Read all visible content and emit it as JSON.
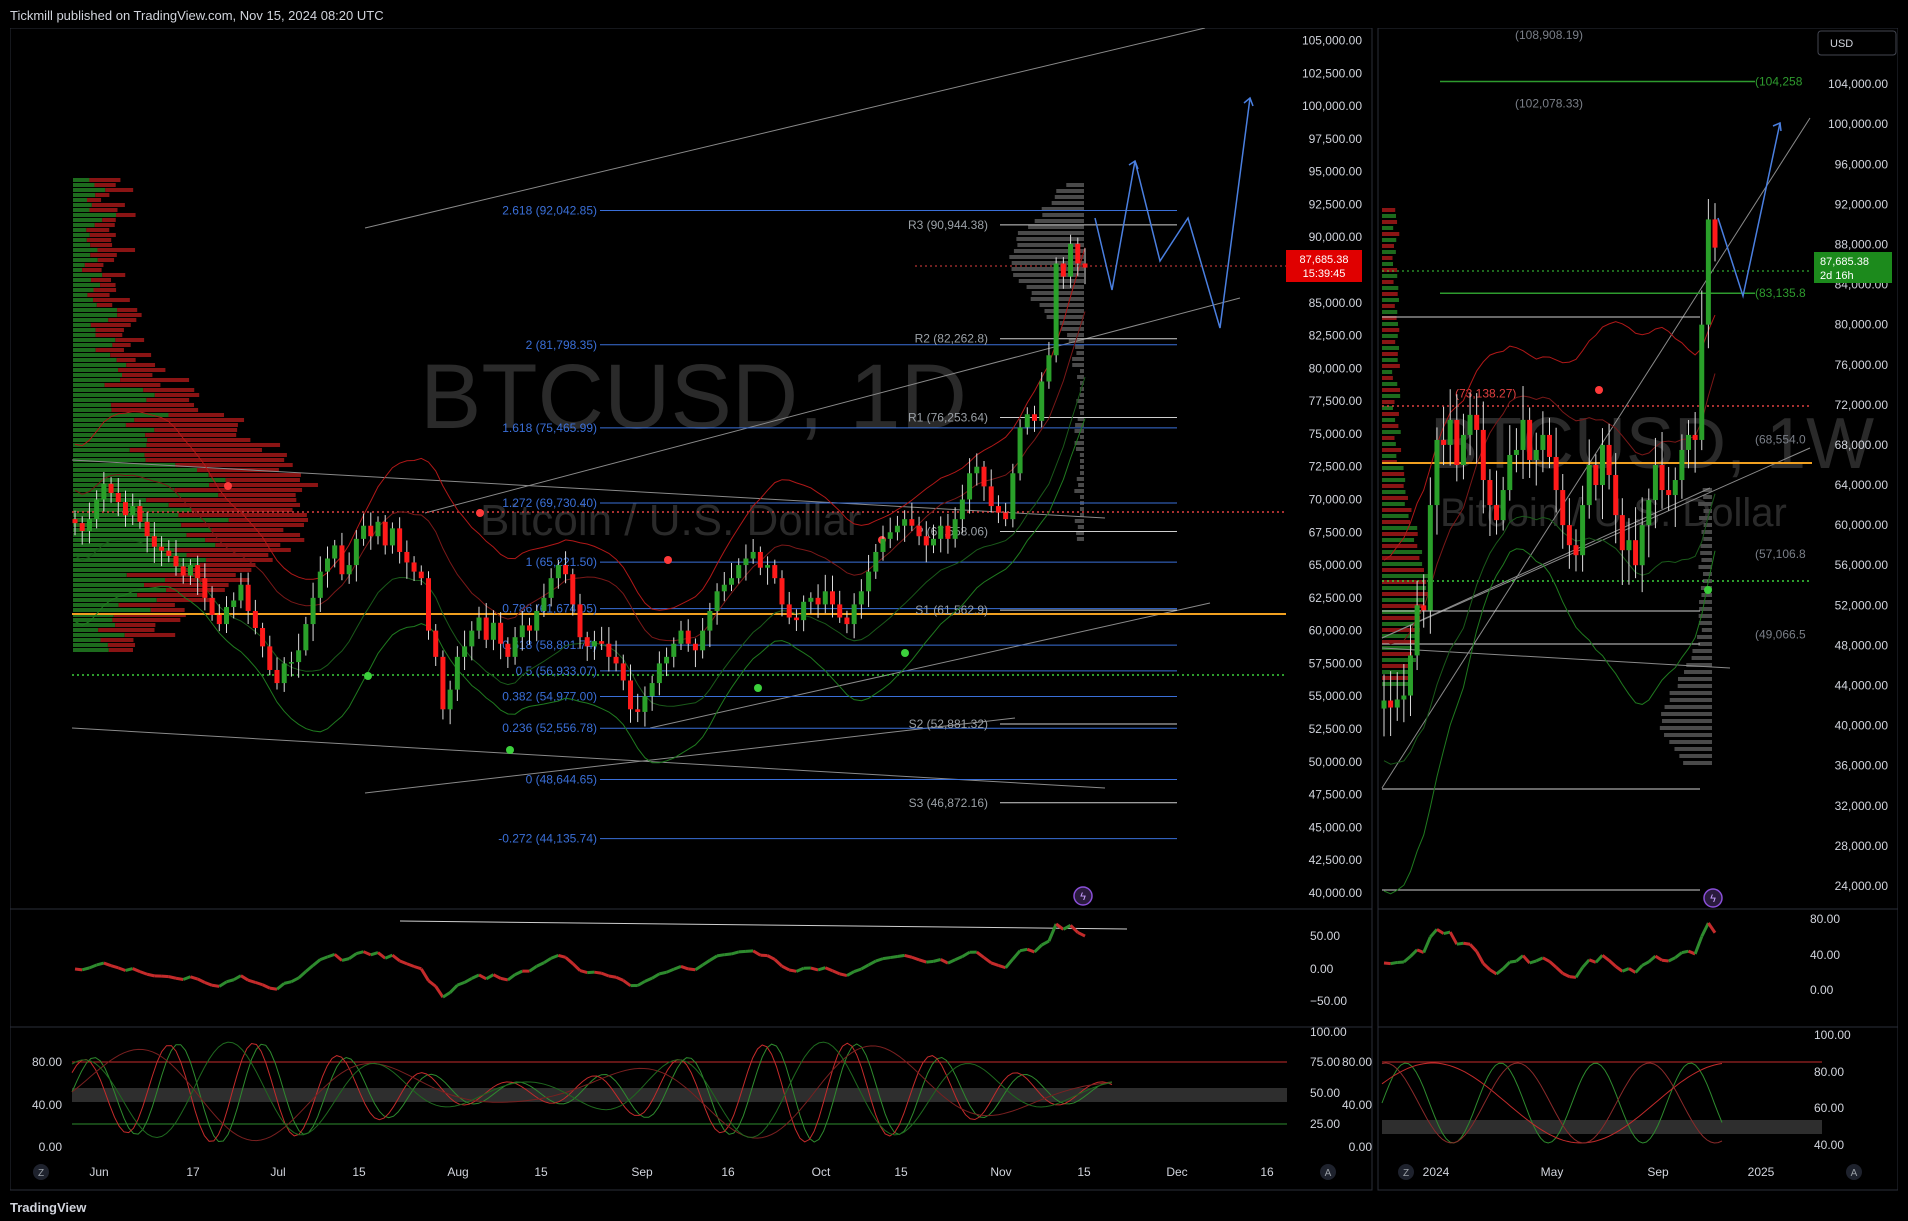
{
  "header": {
    "publisher": "Tickmill published on TradingView.com, Nov 15, 2024 08:20 UTC"
  },
  "footer": {
    "brand": "TradingView"
  },
  "currency_button": "USD",
  "colors": {
    "up": "#2e8b2e",
    "down": "#e00000",
    "fib": "#3a6fd8",
    "pivot": "#9aa0a6",
    "poc": "#f0a020",
    "grid": "#202020"
  },
  "chart_data": [
    {
      "type": "line",
      "title": "BTCUSD, 1D",
      "subtitle": "Bitcoin / U.S. Dollar",
      "price_ticks": [
        "105,000.00",
        "102,500.00",
        "100,000.00",
        "97,500.00",
        "95,000.00",
        "92,500.00",
        "90,000.00",
        "87,500.00",
        "85,000.00",
        "82,500.00",
        "80,000.00",
        "77,500.00",
        "75,000.00",
        "72,500.00",
        "70,000.00",
        "67,500.00",
        "65,000.00",
        "62,500.00",
        "60,000.00",
        "57,500.00",
        "55,000.00",
        "52,500.00",
        "50,000.00",
        "47,500.00",
        "45,000.00",
        "42,500.00",
        "40,000.00"
      ],
      "yrange": [
        39000,
        105500
      ],
      "x_labels": [
        "Jun",
        "17",
        "Jul",
        "15",
        "Aug",
        "15",
        "Sep",
        "16",
        "Oct",
        "15",
        "Nov",
        "15",
        "Dec",
        "16"
      ],
      "last_price": "87,685.38",
      "countdown": "15:39:45",
      "fib_levels": [
        {
          "label": "2.618 (92,042.85)",
          "value": 92042.85
        },
        {
          "label": "2 (81,798.35)",
          "value": 81798.35
        },
        {
          "label": "1.618 (75,465.99)",
          "value": 75465.99
        },
        {
          "label": "1.272 (69,730.40)",
          "value": 69730.4
        },
        {
          "label": "1 (65,221.50)",
          "value": 65221.5
        },
        {
          "label": "0.786 (61,674.05)",
          "value": 61674.05
        },
        {
          "label": "0.618 (58,891.74)",
          "value": 58891.74
        },
        {
          "label": "0.5 (56,933.07)",
          "value": 56933.07
        },
        {
          "label": "0.382 (54,977.00)",
          "value": 54977.0
        },
        {
          "label": "0.236 (52,556.78)",
          "value": 52556.78
        },
        {
          "label": "0 (48,644.65)",
          "value": 48644.65
        },
        {
          "label": "-0.272 (44,135.74)",
          "value": 44135.74
        }
      ],
      "pivot_levels": [
        {
          "label": "R3 (90,944.38)",
          "value": 90944.38
        },
        {
          "label": "R2 (82,262.8)",
          "value": 82262.8
        },
        {
          "label": "R1 (76,253.64)",
          "value": 76253.64
        },
        {
          "label": "P (67,558.06)",
          "value": 67558.06
        },
        {
          "label": "S1 (61,562.9)",
          "value": 61562.9
        },
        {
          "label": "S2 (52,881.32)",
          "value": 52881.32
        },
        {
          "label": "S3 (46,872.16)",
          "value": 46872.16
        }
      ],
      "close_series": [
        68200,
        67600,
        68500,
        70000,
        71200,
        70500,
        69800,
        68800,
        69500,
        68300,
        67200,
        66400,
        66100,
        65700,
        64900,
        64200,
        65000,
        64000,
        62500,
        61200,
        60500,
        61800,
        62300,
        63500,
        61500,
        60200,
        58800,
        57000,
        56000,
        57500,
        57600,
        58500,
        60500,
        62500,
        64500,
        65500,
        66500,
        64300,
        65000,
        67000,
        68000,
        67200,
        68300,
        66500,
        67800,
        66000,
        65200,
        64500,
        64000,
        60000,
        58000,
        54000,
        55500,
        58000,
        58800,
        60000,
        61000,
        59300,
        60600,
        59000,
        58000,
        59500,
        60400,
        60000,
        61500,
        62500,
        64000,
        65000,
        64300,
        62000,
        59500,
        58800,
        59200,
        59000,
        58000,
        57500,
        56200,
        54000,
        53800,
        55000,
        56000,
        57500,
        58000,
        59000,
        60000,
        59000,
        58500,
        60000,
        61500,
        63000,
        63500,
        64000,
        65000,
        65500,
        66000,
        64800,
        65000,
        64000,
        62000,
        61000,
        60800,
        62200,
        62500,
        62000,
        63000,
        62000,
        61000,
        60500,
        62000,
        63000,
        64500,
        66000,
        67000,
        67500,
        68000,
        68500,
        68000,
        67200,
        66500,
        67000,
        68000,
        67000,
        68500,
        70000,
        72000,
        72500,
        71000,
        69500,
        69000,
        68500,
        72000,
        75500,
        76500,
        76000,
        79000,
        81000,
        88000,
        87000,
        89500,
        88000,
        87685
      ]
    },
    {
      "type": "line",
      "title": "BTCUSD, 1W",
      "subtitle": "Bitcoin / U.S. Dollar",
      "price_ticks": [
        "104,000.00",
        "100,000.00",
        "96,000.00",
        "92,000.00",
        "88,000.00",
        "84,000.00",
        "80,000.00",
        "76,000.00",
        "72,000.00",
        "68,000.00",
        "64,000.00",
        "60,000.00",
        "56,000.00",
        "52,000.00",
        "48,000.00",
        "44,000.00",
        "40,000.00",
        "36,000.00",
        "32,000.00",
        "28,000.00",
        "24,000.00"
      ],
      "yrange": [
        22000,
        109000
      ],
      "x_labels": [
        "2024",
        "May",
        "Sep",
        "2025"
      ],
      "last_price": "87,685.38",
      "countdown": "2d 16h",
      "levels": [
        {
          "label": "(108,908.19)",
          "value": 108908.19
        },
        {
          "label": "(104,258",
          "value": 104258
        },
        {
          "label": "(102,078.33)",
          "value": 102078.33
        },
        {
          "label": "(83,135.8",
          "value": 83135.8
        },
        {
          "label": "(73,138.27)",
          "value": 73138.27
        },
        {
          "label": "(68,554.0",
          "value": 68554.0
        },
        {
          "label": "(57,106.8",
          "value": 57106.8
        },
        {
          "label": "(49,066.5",
          "value": 49066.5
        }
      ],
      "close_series": [
        42500,
        41800,
        42600,
        43000,
        47000,
        52000,
        51500,
        62000,
        68500,
        68000,
        70500,
        66000,
        69000,
        71000,
        69500,
        64500,
        62000,
        60500,
        63500,
        67000,
        67500,
        70500,
        66500,
        67500,
        69000,
        66800,
        63500,
        60000,
        58000,
        57000,
        62000,
        66000,
        64000,
        68000,
        65000,
        61000,
        57500,
        58500,
        56000,
        60000,
        62500,
        66000,
        63500,
        63000,
        64500,
        67500,
        69000,
        68500,
        80000,
        90500,
        87685
      ]
    }
  ],
  "oscillators": {
    "left_mid_ticks": [
      "50.00",
      "0.00",
      "−50.00"
    ],
    "left_low_ticks_left": [
      "80.00",
      "40.00",
      "0.00"
    ],
    "left_low_ticks_right": [
      "100.00",
      "75.00",
      "50.00",
      "25.00"
    ],
    "right_mid_ticks": [
      "80.00",
      "40.00",
      "0.00"
    ],
    "right_low_ticks_left": [
      "80.00",
      "40.00",
      "0.00"
    ],
    "right_low_ticks_right": [
      "100.00",
      "80.00",
      "60.00",
      "40.00"
    ]
  }
}
